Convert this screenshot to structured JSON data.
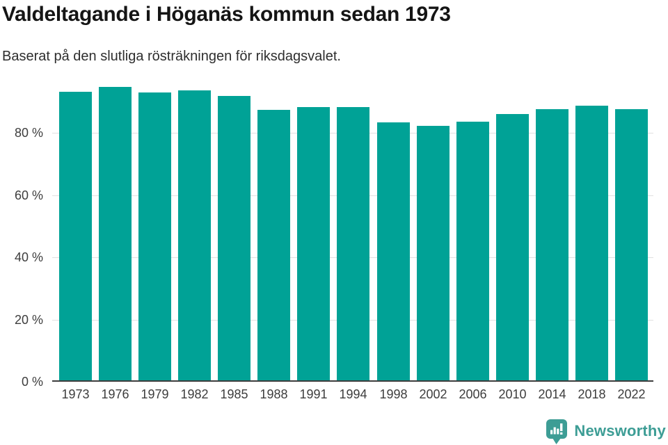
{
  "header": {
    "title": "Valdeltagande i Höganäs kommun sedan 1973",
    "subtitle": "Baserat på den slutliga rösträkningen för riksdagsvalet."
  },
  "chart_data": {
    "type": "bar",
    "title": "Valdeltagande i Höganäs kommun sedan 1973",
    "subtitle": "Baserat på den slutliga rösträkningen för riksdagsvalet.",
    "categories": [
      "1973",
      "1976",
      "1979",
      "1982",
      "1985",
      "1988",
      "1991",
      "1994",
      "1998",
      "2002",
      "2006",
      "2010",
      "2014",
      "2018",
      "2022"
    ],
    "values": [
      93.1,
      94.7,
      92.9,
      93.7,
      91.8,
      87.4,
      88.2,
      88.3,
      83.3,
      82.2,
      83.6,
      86.0,
      87.5,
      88.8,
      87.5
    ],
    "unit": "%",
    "xlabel": "",
    "ylabel": "",
    "ylim": [
      0,
      100
    ],
    "yticks": [
      {
        "value": 0,
        "label": "0 %"
      },
      {
        "value": 20,
        "label": "20 %"
      },
      {
        "value": 40,
        "label": "40 %"
      },
      {
        "value": 60,
        "label": "60 %"
      },
      {
        "value": 80,
        "label": "80 %"
      }
    ],
    "grid": true,
    "legend": "none",
    "bar_color": "#00A296",
    "gridline_color": "#e0e0e0",
    "axis_color": "#3d3d3d"
  },
  "footer": {
    "brand": "Newsworthy",
    "brand_color": "#3D9D95",
    "logo_icon": "newsworthy-speech-bubble-bar-chart-icon"
  }
}
